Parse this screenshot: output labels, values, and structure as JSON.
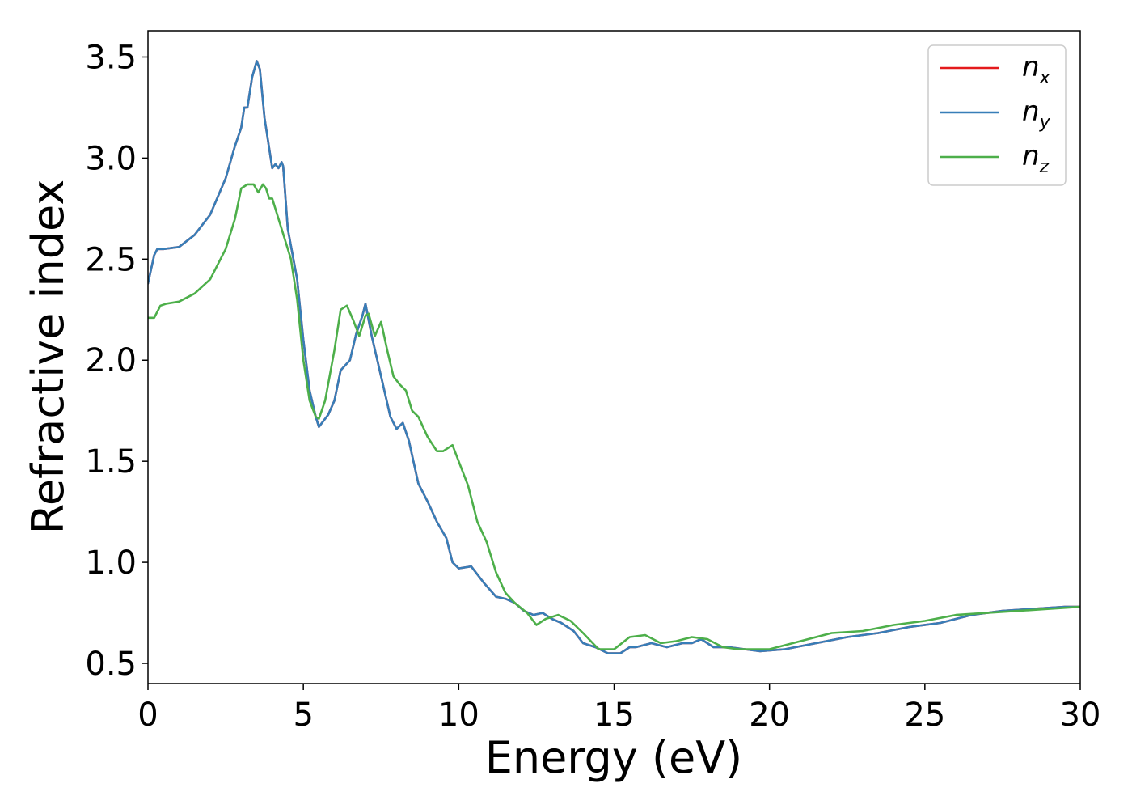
{
  "chart_data": {
    "type": "line",
    "title": "",
    "xlabel": "Energy (eV)",
    "ylabel": "Refractive index",
    "xlim": [
      0,
      30
    ],
    "ylim": [
      0.4,
      3.63
    ],
    "xticks": [
      0,
      5,
      10,
      15,
      20,
      25,
      30
    ],
    "xtick_labels": [
      "0",
      "5",
      "10",
      "15",
      "20",
      "25",
      "30"
    ],
    "yticks": [
      0.5,
      1.0,
      1.5,
      2.0,
      2.5,
      3.0,
      3.5
    ],
    "ytick_labels": [
      "0.5",
      "1.0",
      "1.5",
      "2.0",
      "2.5",
      "3.0",
      "3.5"
    ],
    "grid": false,
    "legend_position": "top-right",
    "series": [
      {
        "name": "n_x",
        "label_main": "n",
        "label_sub": "x",
        "color": "#e41a1c",
        "x": [
          0,
          0.2,
          0.3,
          0.5,
          1,
          1.5,
          2,
          2.5,
          2.8,
          3,
          3.1,
          3.2,
          3.35,
          3.5,
          3.6,
          3.75,
          4,
          4.1,
          4.2,
          4.3,
          4.35,
          4.5,
          4.8,
          5,
          5.2,
          5.4,
          5.5,
          5.8,
          6,
          6.2,
          6.5,
          6.7,
          6.9,
          7,
          7.2,
          7.5,
          7.8,
          8,
          8.2,
          8.4,
          8.7,
          9,
          9.3,
          9.6,
          9.8,
          10,
          10.4,
          10.8,
          11.2,
          11.5,
          11.8,
          12.1,
          12.4,
          12.7,
          13,
          13.3,
          13.7,
          14,
          14.4,
          14.8,
          15.2,
          15.5,
          15.7,
          16.2,
          16.7,
          17.2,
          17.5,
          17.8,
          18.2,
          18.7,
          19.2,
          19.7,
          20.5,
          21.5,
          22.5,
          23.5,
          24.5,
          25.5,
          26.5,
          27.5,
          28.5,
          29.5,
          30
        ],
        "y": [
          2.38,
          2.52,
          2.55,
          2.55,
          2.56,
          2.62,
          2.72,
          2.9,
          3.06,
          3.15,
          3.25,
          3.25,
          3.4,
          3.48,
          3.44,
          3.2,
          2.95,
          2.97,
          2.95,
          2.98,
          2.96,
          2.65,
          2.4,
          2.1,
          1.85,
          1.72,
          1.67,
          1.73,
          1.8,
          1.95,
          2.0,
          2.13,
          2.22,
          2.28,
          2.12,
          1.92,
          1.72,
          1.66,
          1.69,
          1.6,
          1.39,
          1.3,
          1.2,
          1.12,
          1.0,
          0.97,
          0.98,
          0.9,
          0.83,
          0.82,
          0.8,
          0.76,
          0.74,
          0.75,
          0.72,
          0.7,
          0.66,
          0.6,
          0.58,
          0.55,
          0.55,
          0.58,
          0.58,
          0.6,
          0.58,
          0.6,
          0.6,
          0.62,
          0.58,
          0.58,
          0.57,
          0.56,
          0.57,
          0.6,
          0.63,
          0.65,
          0.68,
          0.7,
          0.74,
          0.76,
          0.77,
          0.78,
          0.78
        ]
      },
      {
        "name": "n_y",
        "label_main": "n",
        "label_sub": "y",
        "color": "#377eb8",
        "x": [
          0,
          0.2,
          0.3,
          0.5,
          1,
          1.5,
          2,
          2.5,
          2.8,
          3,
          3.1,
          3.2,
          3.35,
          3.5,
          3.6,
          3.75,
          4,
          4.1,
          4.2,
          4.3,
          4.35,
          4.5,
          4.8,
          5,
          5.2,
          5.4,
          5.5,
          5.8,
          6,
          6.2,
          6.5,
          6.7,
          6.9,
          7,
          7.2,
          7.5,
          7.8,
          8,
          8.2,
          8.4,
          8.7,
          9,
          9.3,
          9.6,
          9.8,
          10,
          10.4,
          10.8,
          11.2,
          11.5,
          11.8,
          12.1,
          12.4,
          12.7,
          13,
          13.3,
          13.7,
          14,
          14.4,
          14.8,
          15.2,
          15.5,
          15.7,
          16.2,
          16.7,
          17.2,
          17.5,
          17.8,
          18.2,
          18.7,
          19.2,
          19.7,
          20.5,
          21.5,
          22.5,
          23.5,
          24.5,
          25.5,
          26.5,
          27.5,
          28.5,
          29.5,
          30
        ],
        "y": [
          2.38,
          2.52,
          2.55,
          2.55,
          2.56,
          2.62,
          2.72,
          2.9,
          3.06,
          3.15,
          3.25,
          3.25,
          3.4,
          3.48,
          3.44,
          3.2,
          2.95,
          2.97,
          2.95,
          2.98,
          2.96,
          2.65,
          2.4,
          2.1,
          1.85,
          1.72,
          1.67,
          1.73,
          1.8,
          1.95,
          2.0,
          2.13,
          2.22,
          2.28,
          2.12,
          1.92,
          1.72,
          1.66,
          1.69,
          1.6,
          1.39,
          1.3,
          1.2,
          1.12,
          1.0,
          0.97,
          0.98,
          0.9,
          0.83,
          0.82,
          0.8,
          0.76,
          0.74,
          0.75,
          0.72,
          0.7,
          0.66,
          0.6,
          0.58,
          0.55,
          0.55,
          0.58,
          0.58,
          0.6,
          0.58,
          0.6,
          0.6,
          0.62,
          0.58,
          0.58,
          0.57,
          0.56,
          0.57,
          0.6,
          0.63,
          0.65,
          0.68,
          0.7,
          0.74,
          0.76,
          0.77,
          0.78,
          0.78
        ]
      },
      {
        "name": "n_z",
        "label_main": "n",
        "label_sub": "z",
        "color": "#4daf4a",
        "x": [
          0,
          0.2,
          0.4,
          0.6,
          1,
          1.5,
          2,
          2.5,
          2.8,
          3,
          3.2,
          3.4,
          3.55,
          3.7,
          3.8,
          3.9,
          4,
          4.2,
          4.4,
          4.6,
          4.8,
          5,
          5.2,
          5.4,
          5.5,
          5.7,
          6,
          6.2,
          6.4,
          6.6,
          6.8,
          7,
          7.1,
          7.3,
          7.5,
          7.7,
          7.9,
          8.1,
          8.3,
          8.5,
          8.7,
          9,
          9.3,
          9.5,
          9.8,
          10,
          10.3,
          10.6,
          10.9,
          11.2,
          11.5,
          11.8,
          12.2,
          12.5,
          12.8,
          13.2,
          13.6,
          14,
          14.5,
          15,
          15.5,
          16,
          16.5,
          17,
          17.5,
          18,
          18.5,
          19,
          19.5,
          20,
          21,
          22,
          23,
          24,
          25,
          26,
          27,
          28,
          29,
          30
        ],
        "y": [
          2.21,
          2.21,
          2.27,
          2.28,
          2.29,
          2.33,
          2.4,
          2.55,
          2.7,
          2.85,
          2.87,
          2.87,
          2.83,
          2.87,
          2.85,
          2.8,
          2.8,
          2.7,
          2.6,
          2.5,
          2.3,
          2.0,
          1.8,
          1.72,
          1.71,
          1.8,
          2.05,
          2.25,
          2.27,
          2.2,
          2.12,
          2.22,
          2.23,
          2.12,
          2.19,
          2.05,
          1.92,
          1.88,
          1.85,
          1.75,
          1.72,
          1.62,
          1.55,
          1.55,
          1.58,
          1.5,
          1.38,
          1.2,
          1.1,
          0.95,
          0.85,
          0.8,
          0.75,
          0.69,
          0.72,
          0.74,
          0.71,
          0.65,
          0.57,
          0.57,
          0.63,
          0.64,
          0.6,
          0.61,
          0.63,
          0.62,
          0.58,
          0.57,
          0.57,
          0.57,
          0.61,
          0.65,
          0.66,
          0.69,
          0.71,
          0.74,
          0.75,
          0.76,
          0.77,
          0.78
        ]
      }
    ]
  }
}
